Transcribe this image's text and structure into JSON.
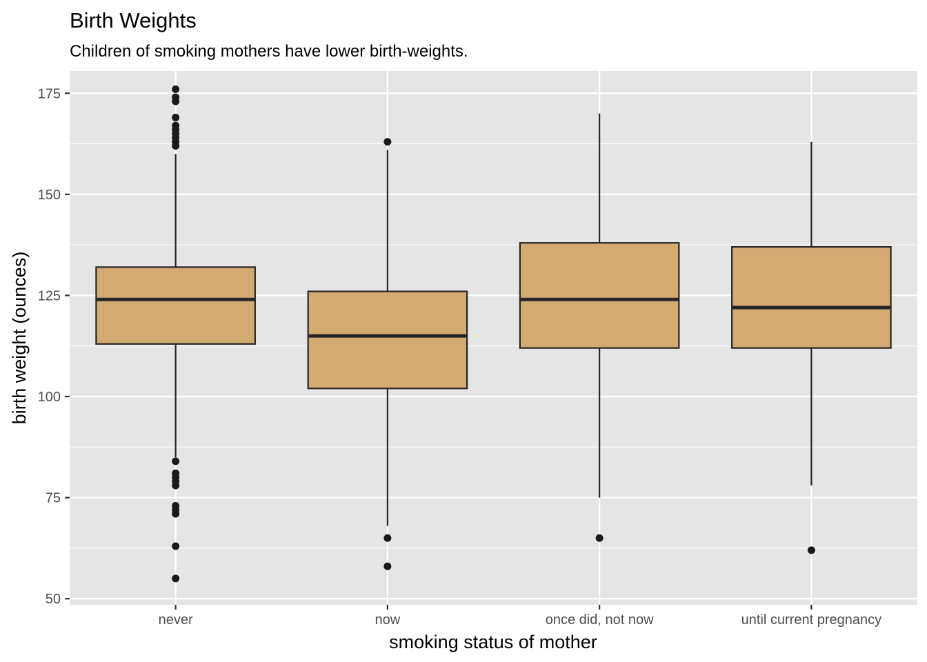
{
  "chart_data": {
    "type": "boxplot",
    "title": "Birth Weights",
    "subtitle": "Children of smoking mothers have lower birth-weights.",
    "xlabel": "smoking status of mother",
    "ylabel": "birth weight (ounces)",
    "ylim": [
      48.5,
      180.5
    ],
    "yticks": [
      50,
      75,
      100,
      125,
      150,
      175
    ],
    "y_minor_ticks": [
      62.5,
      87.5,
      112.5,
      137.5,
      162.5
    ],
    "categories": [
      "never",
      "now",
      "once did, not now",
      "until current pregnancy"
    ],
    "boxes": [
      {
        "category": "never",
        "lower_whisker": 85,
        "q1": 113,
        "median": 124,
        "q3": 132,
        "upper_whisker": 160,
        "outliers": [
          176,
          174,
          173,
          169,
          167,
          166,
          165,
          164,
          163,
          162,
          84,
          81,
          80,
          79,
          78,
          73,
          72,
          71,
          63,
          55
        ]
      },
      {
        "category": "now",
        "lower_whisker": 68,
        "q1": 102,
        "median": 115,
        "q3": 126,
        "upper_whisker": 161,
        "outliers": [
          163,
          65,
          58
        ]
      },
      {
        "category": "once did, not now",
        "lower_whisker": 75,
        "q1": 112,
        "median": 124,
        "q3": 138,
        "upper_whisker": 170,
        "outliers": [
          65
        ]
      },
      {
        "category": "until current pregnancy",
        "lower_whisker": 78,
        "q1": 112,
        "median": 122,
        "q3": 137,
        "upper_whisker": 163,
        "outliers": [
          62
        ]
      }
    ],
    "colors": {
      "panel_background": "#e5e5e5",
      "grid": "#ffffff",
      "box_fill": "#d4aa73",
      "box_outline": "#262626",
      "outlier": "#1a1a1a"
    },
    "grid": true,
    "legend": "none"
  }
}
